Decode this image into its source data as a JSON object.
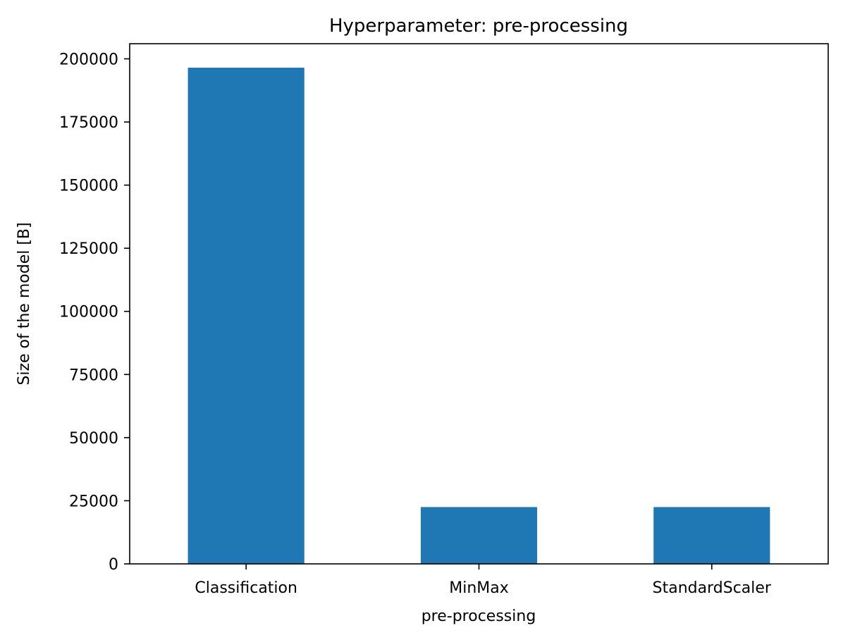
{
  "colors": {
    "bar": "#1f77b4",
    "axis": "#000000",
    "background": "#ffffff"
  },
  "chart_data": {
    "type": "bar",
    "title": "Hyperparameter: pre-processing",
    "xlabel": "pre-processing",
    "ylabel": "Size of the model [B]",
    "categories": [
      "Classification",
      "MinMax",
      "StandardScaler"
    ],
    "values": [
      196500,
      22500,
      22500
    ],
    "ylim": [
      0,
      206000
    ],
    "yticks": [
      0,
      25000,
      50000,
      75000,
      100000,
      125000,
      150000,
      175000,
      200000
    ],
    "ytick_labels": [
      "0",
      "25000",
      "50000",
      "75000",
      "100000",
      "125000",
      "150000",
      "175000",
      "200000"
    ],
    "grid": false,
    "legend": "none"
  }
}
